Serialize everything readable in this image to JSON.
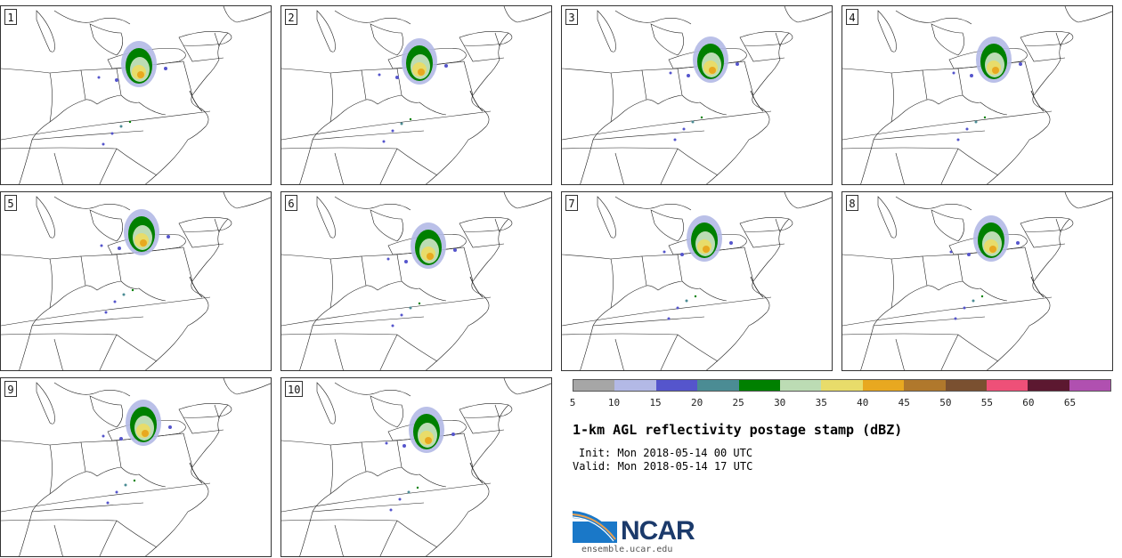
{
  "panels": [
    {
      "label": "1"
    },
    {
      "label": "2"
    },
    {
      "label": "3"
    },
    {
      "label": "4"
    },
    {
      "label": "5"
    },
    {
      "label": "6"
    },
    {
      "label": "7"
    },
    {
      "label": "8"
    },
    {
      "label": "9"
    },
    {
      "label": "10"
    }
  ],
  "colorbar": {
    "colors": [
      "#a6a6a6",
      "#b3b9e6",
      "#5555cc",
      "#4b8c94",
      "#008000",
      "#bcdcb4",
      "#e8dc6a",
      "#e8a820",
      "#b0782c",
      "#7a5030",
      "#ee5078",
      "#5c1830",
      "#b050b0"
    ],
    "ticks": [
      "5",
      "10",
      "15",
      "20",
      "25",
      "30",
      "35",
      "40",
      "45",
      "50",
      "55",
      "60",
      "65"
    ]
  },
  "title": "1-km AGL reflectivity postage stamp (dBZ)",
  "init": "Init: Mon 2018-05-14 00 UTC",
  "valid": "Valid: Mon 2018-05-14 17 UTC",
  "logo": {
    "name": "NCAR",
    "url": "ensemble.ucar.edu"
  }
}
